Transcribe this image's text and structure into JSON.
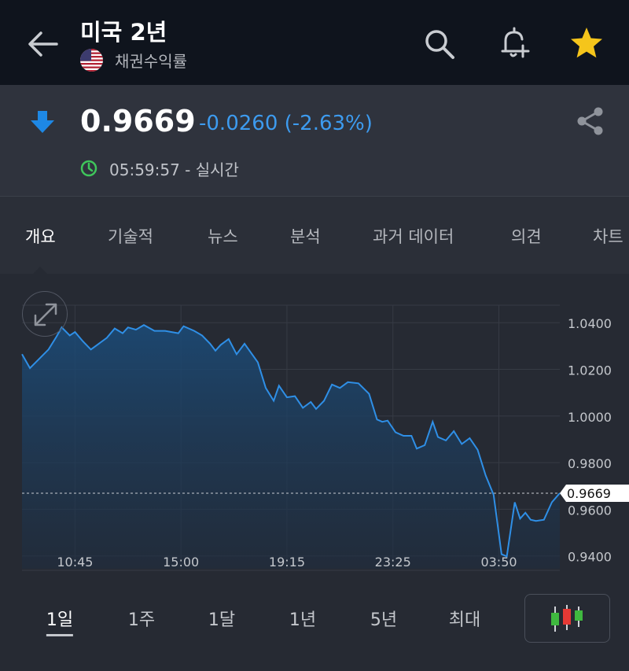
{
  "header": {
    "title": "미국 2년",
    "subtitle": "채권수익률"
  },
  "quote": {
    "price": "0.9669",
    "change": "-0.0260 (-2.63%)",
    "time": "05:59:57 - 실시간",
    "direction": "down",
    "change_color": "#3d9bef"
  },
  "tabs": [
    {
      "label": "개요",
      "active": true
    },
    {
      "label": "기술적",
      "active": false
    },
    {
      "label": "뉴스",
      "active": false
    },
    {
      "label": "분석",
      "active": false
    },
    {
      "label": "과거 데이터",
      "active": false
    },
    {
      "label": "의견",
      "active": false
    },
    {
      "label": "차트",
      "active": false
    }
  ],
  "periods": [
    {
      "label": "1일",
      "active": true
    },
    {
      "label": "1주",
      "active": false
    },
    {
      "label": "1달",
      "active": false
    },
    {
      "label": "1년",
      "active": false
    },
    {
      "label": "5년",
      "active": false
    },
    {
      "label": "최대",
      "active": false
    }
  ],
  "chart_data": {
    "type": "area",
    "current_value": 0.9669,
    "current_label": "0.9669",
    "ylim": [
      0.9345,
      1.0475
    ],
    "y_ticks": [
      "1.0400",
      "1.0200",
      "1.0000",
      "0.9800",
      "0.9600",
      "0.9400"
    ],
    "y_tick_values": [
      1.04,
      1.02,
      1.0,
      0.98,
      0.96,
      0.94
    ],
    "x_ticks": [
      "10:45",
      "15:00",
      "19:15",
      "23:25",
      "03:50"
    ],
    "x_tick_positions": [
      2,
      6,
      10,
      14,
      18
    ],
    "xlim": [
      0,
      20.3
    ],
    "grid": true,
    "line_color": "#2f8fe6",
    "series": [
      {
        "x": [
          0.0,
          0.3,
          1.0,
          1.3,
          1.5,
          1.8,
          2.0,
          2.3,
          2.6,
          2.9,
          3.2,
          3.5,
          3.8,
          4.0,
          4.3,
          4.6,
          5.0,
          5.4,
          5.9,
          6.1,
          6.5,
          6.8,
          7.1,
          7.3,
          7.5,
          7.8,
          8.1,
          8.4,
          8.9,
          9.2,
          9.5,
          9.7,
          10.0,
          10.3,
          10.6,
          10.9,
          11.1,
          11.4,
          11.7,
          12.0,
          12.3,
          12.7,
          13.1,
          13.4,
          13.6,
          13.8,
          14.1,
          14.4,
          14.7,
          14.9,
          15.2,
          15.5,
          15.7,
          16.0,
          16.3,
          16.6,
          16.9,
          17.2,
          17.5,
          17.8,
          18.1,
          18.3,
          18.6,
          18.8,
          19.0,
          19.2,
          19.4,
          19.7,
          20.0,
          20.3
        ],
        "y": [
          1.0265,
          1.0205,
          1.0285,
          1.034,
          1.038,
          1.0345,
          1.036,
          1.032,
          1.0285,
          1.031,
          1.0335,
          1.0375,
          1.0355,
          1.038,
          1.037,
          1.039,
          1.0365,
          1.0365,
          1.0355,
          1.0385,
          1.0365,
          1.0345,
          1.031,
          1.028,
          1.0305,
          1.033,
          1.0265,
          1.031,
          1.023,
          1.012,
          1.0065,
          1.013,
          1.008,
          1.0085,
          1.0035,
          1.006,
          1.003,
          1.0065,
          1.0135,
          1.012,
          1.0145,
          1.014,
          1.0095,
          0.9985,
          0.9975,
          0.998,
          0.993,
          0.9915,
          0.9915,
          0.986,
          0.9875,
          0.9975,
          0.991,
          0.9895,
          0.9935,
          0.988,
          0.9905,
          0.9855,
          0.9745,
          0.9662,
          0.9407,
          0.9398,
          0.963,
          0.956,
          0.9585,
          0.9555,
          0.955,
          0.9555,
          0.963,
          0.9669
        ]
      }
    ]
  },
  "colors": {
    "header_bg": "#0f141d",
    "quote_bg": "#2f333d",
    "star": "#f5c51b",
    "clock": "#3fc65b"
  }
}
